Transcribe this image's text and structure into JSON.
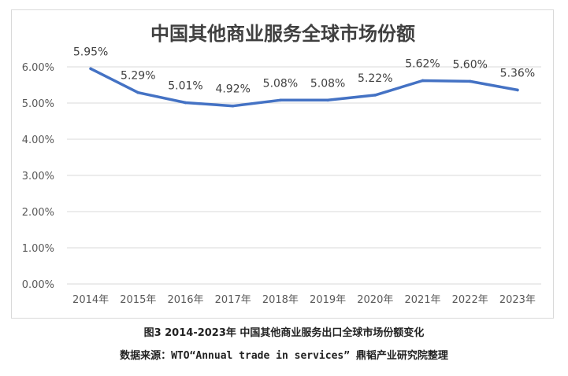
{
  "caption": "图3 2014-2023年 中国其他商业服务出口全球市场份额变化",
  "source": "数据来源：WTO“Annual trade in services” 鼎韬产业研究院整理",
  "colors": {
    "line": "#4472c4",
    "grid": "#d9d9d9",
    "text": "#595959"
  },
  "chart_data": {
    "type": "line",
    "title": "中国其他商业服务全球市场份额",
    "categories": [
      "2014年",
      "2015年",
      "2016年",
      "2017年",
      "2018年",
      "2019年",
      "2020年",
      "2021年",
      "2022年",
      "2023年"
    ],
    "series": [
      {
        "values": [
          5.95,
          5.29,
          5.01,
          4.92,
          5.08,
          5.08,
          5.22,
          5.62,
          5.6,
          5.36
        ]
      }
    ],
    "data_labels": [
      "5.95%",
      "5.29%",
      "5.01%",
      "4.92%",
      "5.08%",
      "5.08%",
      "5.22%",
      "5.62%",
      "5.60%",
      "5.36%"
    ],
    "yticks": [
      "0.00%",
      "1.00%",
      "2.00%",
      "3.00%",
      "4.00%",
      "5.00%",
      "6.00%"
    ],
    "ylim": [
      0,
      6
    ],
    "xlabel": "",
    "ylabel": "",
    "grid": true,
    "legend": "none"
  }
}
